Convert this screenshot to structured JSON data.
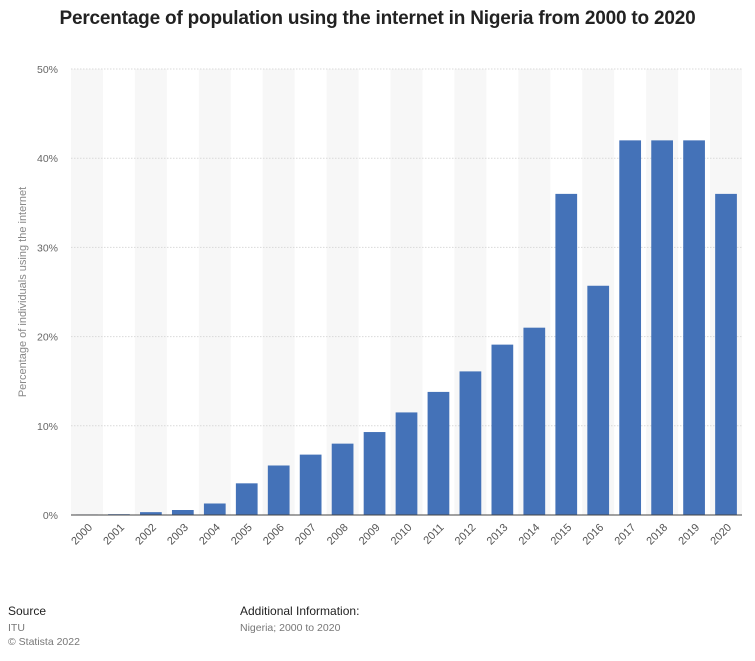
{
  "chart_data": {
    "type": "bar",
    "title": "Percentage of population using the internet in Nigeria from 2000 to 2020",
    "xlabel": "",
    "ylabel": "Percentage of individuals using the internet",
    "ylim": [
      0,
      50
    ],
    "yticks": [
      "0%",
      "10%",
      "20%",
      "30%",
      "40%",
      "50%"
    ],
    "categories": [
      "2000",
      "2001",
      "2002",
      "2003",
      "2004",
      "2005",
      "2006",
      "2007",
      "2008",
      "2009",
      "2010",
      "2011",
      "2012",
      "2013",
      "2014",
      "2015",
      "2016",
      "2017",
      "2018",
      "2019",
      "2020"
    ],
    "values": [
      0.06,
      0.09,
      0.32,
      0.56,
      1.29,
      3.55,
      5.55,
      6.77,
      8.0,
      9.3,
      11.5,
      13.8,
      16.1,
      19.1,
      21.0,
      36.0,
      25.7,
      42.0,
      42.0,
      42.0,
      36.0
    ],
    "grid": true,
    "bar_color": "#4472b8",
    "stripe_color": "#f7f7f7"
  },
  "footer": {
    "source_heading": "Source",
    "source_name": "ITU",
    "copyright": "© Statista 2022",
    "info_heading": "Additional Information:",
    "info_text": "Nigeria; 2000 to 2020"
  }
}
